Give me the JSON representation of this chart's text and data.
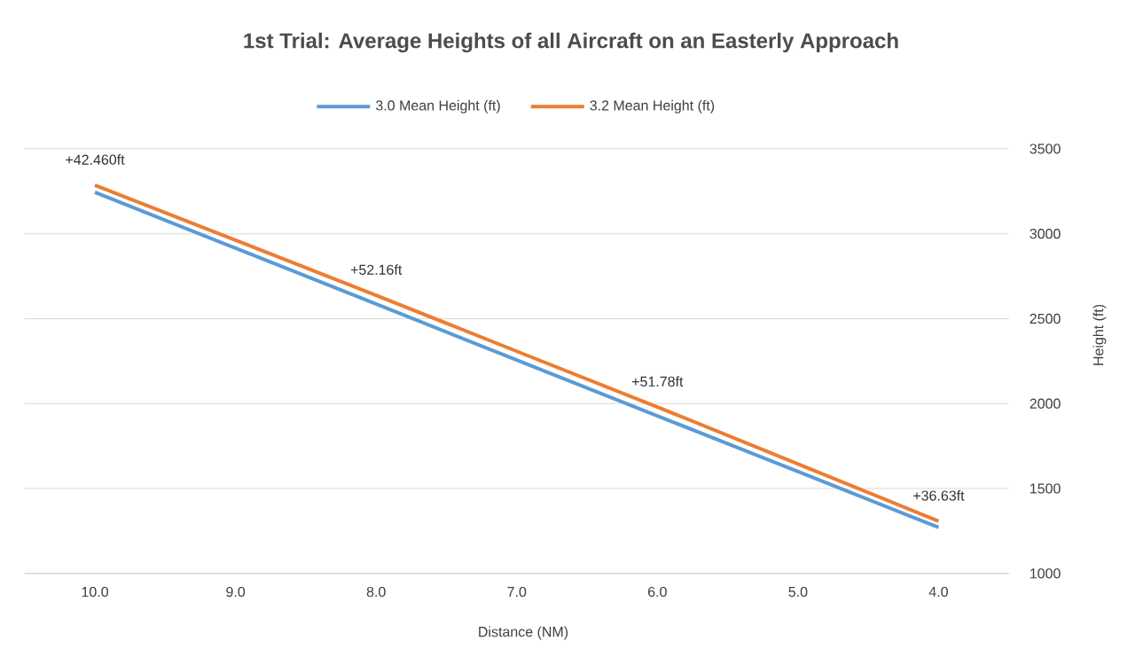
{
  "chart_data": {
    "type": "line",
    "title": "1st Trial: Average Heights of all Aircraft on an Easterly Approach",
    "xlabel": "Distance (NM)",
    "ylabel": "Height (ft)",
    "categories": [
      "10.0",
      "9.0",
      "8.0",
      "7.0",
      "6.0",
      "5.0",
      "4.0"
    ],
    "series": [
      {
        "name": "3.0 Mean Height (ft)",
        "color": "#5b9bd5",
        "values": [
          3244,
          2915,
          2586,
          2257,
          1928,
          1600,
          1271
        ]
      },
      {
        "name": "3.2 Mean Height (ft)",
        "color": "#ed7d31",
        "values": [
          3286,
          2962,
          2638,
          2308,
          1980,
          1645,
          1308
        ]
      }
    ],
    "ylim": [
      1000,
      3500
    ],
    "yticks": [
      1000,
      1500,
      2000,
      2500,
      3000,
      3500
    ],
    "grid": "y",
    "legend": "top",
    "annotations": [
      {
        "text": "+42.460ft",
        "x": "10.0",
        "y": 3286
      },
      {
        "text": "+52.16ft",
        "x": "8.0",
        "y": 2638
      },
      {
        "text": "+51.78ft",
        "x": "6.0",
        "y": 1980
      },
      {
        "text": "+36.63ft",
        "x": "4.0",
        "y": 1308
      }
    ]
  }
}
